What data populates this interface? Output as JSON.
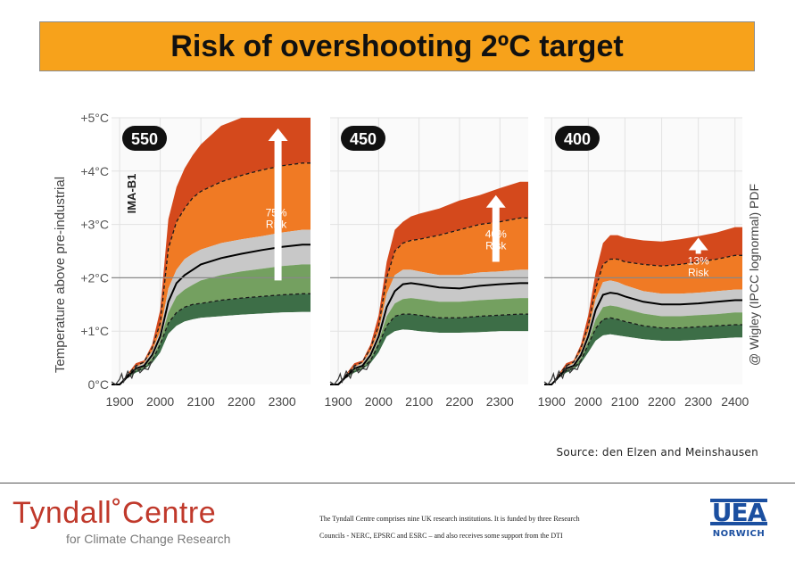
{
  "title": "Risk of overshooting 2ºC target",
  "source": "Source: den Elzen and Meinshausen",
  "footer": {
    "line1": "The Tyndall Centre comprises nine UK research institutions.   It is funded by three Research",
    "line2": "Councils - NERC, EPSRC and ESRC – and also receives some support from the DTI"
  },
  "logos": {
    "tyndall_main": "Tyndall˚Centre",
    "tyndall_sub": "for Climate Change Research",
    "uea": "UEA",
    "norwich": "NORWICH"
  },
  "colors": {
    "band_outer_red": "#d4491c",
    "band_orange": "#f07a24",
    "band_gray": "#c8c8c8",
    "band_green": "#74a060",
    "band_dark_green": "#3d6e47",
    "threshold_line": "#888888"
  },
  "chart_data": {
    "type": "area",
    "ylabel": "Temperature above pre-industrial",
    "right_label": "@ Wigley (IPCC lognormal) PDF",
    "ylim": [
      0,
      5
    ],
    "yticks": [
      "0°C",
      "+1°C",
      "+2°C",
      "+3°C",
      "+4°C",
      "+5°C"
    ],
    "threshold": 2,
    "scenario_label": "IMA-B1",
    "panels": [
      {
        "scenario": "550",
        "risk_pct": "75%",
        "risk_label": "Risk",
        "xlim": [
          1880,
          2370
        ],
        "xticks": [
          "1900",
          "2000",
          "2100",
          "2200",
          "2300"
        ],
        "arrow": {
          "x": 2290,
          "from": 1.95,
          "to": 4.8
        },
        "years": [
          1880,
          1900,
          1920,
          1940,
          1960,
          1980,
          2000,
          2020,
          2040,
          2060,
          2080,
          2100,
          2150,
          2200,
          2250,
          2300,
          2350,
          2370
        ],
        "median": [
          0.0,
          0.0,
          0.15,
          0.3,
          0.35,
          0.55,
          0.9,
          1.55,
          1.9,
          2.05,
          2.15,
          2.25,
          2.37,
          2.45,
          2.52,
          2.58,
          2.62,
          2.62
        ],
        "bands": [
          {
            "name": "p95",
            "values": [
              0.0,
              0.0,
              0.2,
              0.4,
              0.45,
              0.75,
              1.4,
              3.1,
              3.7,
              4.05,
              4.3,
              4.5,
              4.85,
              5.0,
              5.0,
              5.0,
              5.0,
              5.0
            ]
          },
          {
            "name": "p80",
            "values": [
              0.0,
              0.0,
              0.18,
              0.35,
              0.42,
              0.68,
              1.15,
              2.55,
              3.05,
              3.3,
              3.5,
              3.62,
              3.8,
              3.92,
              4.02,
              4.1,
              4.15,
              4.15
            ]
          },
          {
            "name": "p66",
            "values": [
              0.0,
              0.0,
              0.17,
              0.33,
              0.4,
              0.62,
              1.0,
              1.8,
              2.15,
              2.35,
              2.45,
              2.53,
              2.65,
              2.72,
              2.78,
              2.85,
              2.9,
              2.9
            ]
          },
          {
            "name": "p50",
            "values": [
              0.0,
              0.0,
              0.15,
              0.3,
              0.35,
              0.55,
              0.9,
              1.55,
              1.9,
              2.05,
              2.15,
              2.25,
              2.37,
              2.45,
              2.52,
              2.58,
              2.62,
              2.62
            ]
          },
          {
            "name": "p33",
            "values": [
              0.0,
              0.0,
              0.14,
              0.28,
              0.33,
              0.5,
              0.82,
              1.35,
              1.65,
              1.78,
              1.87,
              1.95,
              2.05,
              2.12,
              2.17,
              2.22,
              2.25,
              2.25
            ]
          },
          {
            "name": "p20",
            "values": [
              0.0,
              0.0,
              0.13,
              0.26,
              0.31,
              0.45,
              0.75,
              1.15,
              1.35,
              1.45,
              1.5,
              1.52,
              1.58,
              1.62,
              1.65,
              1.68,
              1.7,
              1.7
            ]
          },
          {
            "name": "p5",
            "values": [
              0.0,
              0.0,
              0.12,
              0.22,
              0.28,
              0.4,
              0.6,
              0.95,
              1.1,
              1.18,
              1.22,
              1.25,
              1.28,
              1.31,
              1.33,
              1.35,
              1.36,
              1.36
            ]
          }
        ]
      },
      {
        "scenario": "450",
        "risk_pct": "40%",
        "risk_label": "Risk",
        "xlim": [
          1880,
          2370
        ],
        "xticks": [
          "1900",
          "2000",
          "2100",
          "2200",
          "2300"
        ],
        "arrow": {
          "x": 2290,
          "from": 2.3,
          "to": 3.55
        },
        "years": [
          1880,
          1900,
          1920,
          1940,
          1960,
          1980,
          2000,
          2020,
          2040,
          2060,
          2080,
          2100,
          2150,
          2200,
          2250,
          2300,
          2350,
          2370
        ],
        "median": [
          0.0,
          0.0,
          0.15,
          0.3,
          0.35,
          0.55,
          0.9,
          1.45,
          1.75,
          1.88,
          1.9,
          1.88,
          1.82,
          1.8,
          1.85,
          1.88,
          1.9,
          1.9
        ],
        "bands": [
          {
            "name": "p95",
            "values": [
              0.0,
              0.0,
              0.2,
              0.4,
              0.45,
              0.75,
              1.3,
              2.3,
              2.9,
              3.05,
              3.15,
              3.2,
              3.3,
              3.45,
              3.55,
              3.68,
              3.8,
              3.8
            ]
          },
          {
            "name": "p80",
            "values": [
              0.0,
              0.0,
              0.18,
              0.35,
              0.42,
              0.68,
              1.1,
              2.0,
              2.5,
              2.65,
              2.7,
              2.72,
              2.8,
              2.9,
              3.0,
              3.05,
              3.12,
              3.12
            ]
          },
          {
            "name": "p66",
            "values": [
              0.0,
              0.0,
              0.17,
              0.33,
              0.4,
              0.62,
              1.0,
              1.7,
              2.05,
              2.15,
              2.15,
              2.12,
              2.05,
              2.05,
              2.1,
              2.12,
              2.15,
              2.15
            ]
          },
          {
            "name": "p50",
            "values": [
              0.0,
              0.0,
              0.15,
              0.3,
              0.35,
              0.55,
              0.9,
              1.45,
              1.75,
              1.88,
              1.9,
              1.88,
              1.82,
              1.8,
              1.85,
              1.88,
              1.9,
              1.9
            ]
          },
          {
            "name": "p33",
            "values": [
              0.0,
              0.0,
              0.14,
              0.28,
              0.33,
              0.5,
              0.82,
              1.28,
              1.52,
              1.6,
              1.62,
              1.6,
              1.55,
              1.55,
              1.58,
              1.6,
              1.62,
              1.62
            ]
          },
          {
            "name": "p20",
            "values": [
              0.0,
              0.0,
              0.13,
              0.26,
              0.31,
              0.45,
              0.75,
              1.1,
              1.28,
              1.32,
              1.32,
              1.3,
              1.25,
              1.25,
              1.28,
              1.3,
              1.32,
              1.32
            ]
          },
          {
            "name": "p5",
            "values": [
              0.0,
              0.0,
              0.12,
              0.22,
              0.28,
              0.4,
              0.6,
              0.9,
              1.0,
              1.03,
              1.02,
              1.0,
              0.97,
              0.97,
              0.98,
              1.0,
              1.0,
              1.0
            ]
          }
        ]
      },
      {
        "scenario": "400",
        "risk_pct": "13%",
        "risk_label": "Risk",
        "xlim": [
          1880,
          2420
        ],
        "xticks": [
          "1900",
          "2000",
          "2100",
          "2200",
          "2300",
          "2400"
        ],
        "arrow": {
          "x": 2300,
          "from": 2.45,
          "to": 2.75
        },
        "years": [
          1880,
          1900,
          1920,
          1940,
          1960,
          1980,
          2000,
          2020,
          2040,
          2060,
          2080,
          2100,
          2150,
          2200,
          2250,
          2300,
          2350,
          2400,
          2420
        ],
        "median": [
          0.0,
          0.0,
          0.15,
          0.3,
          0.35,
          0.55,
          0.9,
          1.4,
          1.68,
          1.72,
          1.7,
          1.65,
          1.55,
          1.5,
          1.5,
          1.52,
          1.55,
          1.58,
          1.58
        ],
        "bands": [
          {
            "name": "p95",
            "values": [
              0.0,
              0.0,
              0.2,
              0.4,
              0.45,
              0.75,
              1.3,
              2.1,
              2.65,
              2.8,
              2.8,
              2.75,
              2.7,
              2.68,
              2.72,
              2.78,
              2.85,
              2.95,
              2.95
            ]
          },
          {
            "name": "p80",
            "values": [
              0.0,
              0.0,
              0.18,
              0.35,
              0.42,
              0.68,
              1.1,
              1.8,
              2.25,
              2.35,
              2.35,
              2.3,
              2.25,
              2.22,
              2.25,
              2.3,
              2.35,
              2.42,
              2.42
            ]
          },
          {
            "name": "p66",
            "values": [
              0.0,
              0.0,
              0.17,
              0.33,
              0.4,
              0.62,
              1.0,
              1.6,
              1.92,
              1.95,
              1.92,
              1.86,
              1.75,
              1.7,
              1.7,
              1.72,
              1.75,
              1.78,
              1.78
            ]
          },
          {
            "name": "p50",
            "values": [
              0.0,
              0.0,
              0.15,
              0.3,
              0.35,
              0.55,
              0.9,
              1.4,
              1.68,
              1.72,
              1.7,
              1.65,
              1.55,
              1.5,
              1.5,
              1.52,
              1.55,
              1.58,
              1.58
            ]
          },
          {
            "name": "p33",
            "values": [
              0.0,
              0.0,
              0.14,
              0.28,
              0.33,
              0.5,
              0.82,
              1.22,
              1.45,
              1.48,
              1.46,
              1.42,
              1.33,
              1.28,
              1.28,
              1.3,
              1.32,
              1.35,
              1.35
            ]
          },
          {
            "name": "p20",
            "values": [
              0.0,
              0.0,
              0.13,
              0.26,
              0.31,
              0.45,
              0.75,
              1.05,
              1.22,
              1.25,
              1.22,
              1.18,
              1.1,
              1.06,
              1.06,
              1.08,
              1.1,
              1.12,
              1.12
            ]
          },
          {
            "name": "p5",
            "values": [
              0.0,
              0.0,
              0.12,
              0.22,
              0.28,
              0.4,
              0.6,
              0.82,
              0.92,
              0.94,
              0.92,
              0.9,
              0.85,
              0.82,
              0.82,
              0.84,
              0.86,
              0.88,
              0.88
            ]
          }
        ]
      }
    ]
  }
}
